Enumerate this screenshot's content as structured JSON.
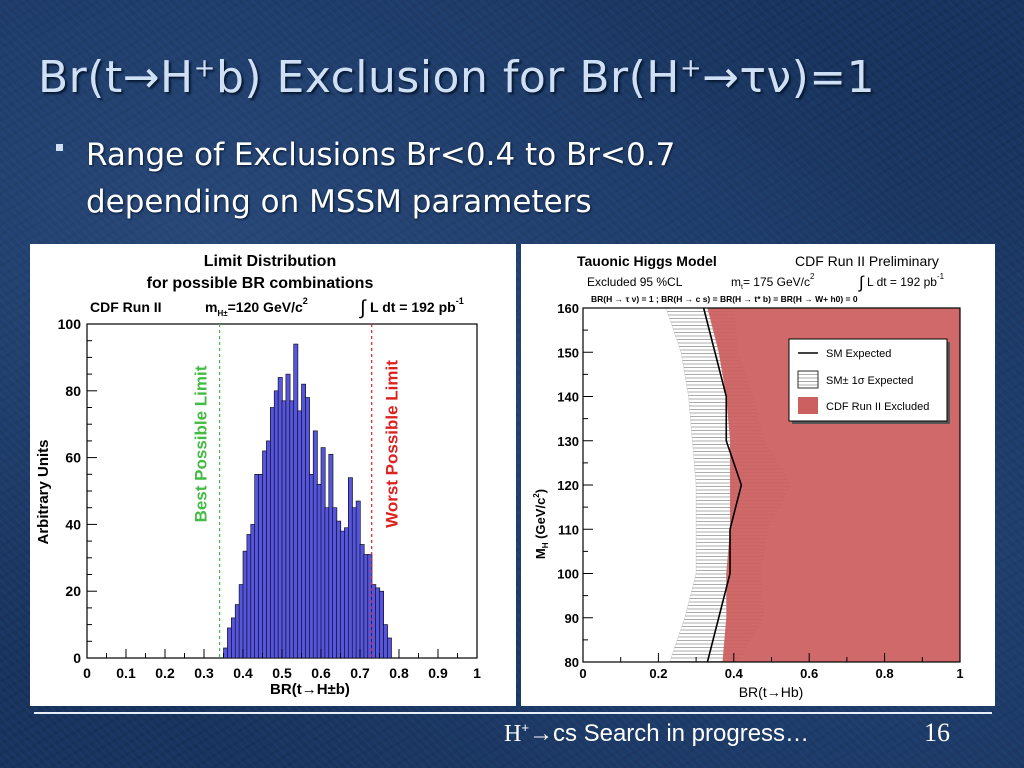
{
  "slide": {
    "title_parts": [
      "Br(t→H",
      "+",
      "b) Exclusion for Br(H",
      "+",
      "→τν)=1"
    ],
    "bullet": "Range of Exclusions Br<0.4 to Br<0.7 depending on MSSM parameters",
    "footer_parts": [
      "H",
      "+",
      "→cs Search in progress…"
    ],
    "page_number": "16"
  },
  "colors": {
    "background": "#17335e",
    "histogram_fill": "#5555dd",
    "best_limit": "#44bb44",
    "worst_limit": "#dd2222",
    "excluded": "#cc5f5f",
    "sm_band": "#999999"
  },
  "chart_data": [
    {
      "type": "bar",
      "title_lines": [
        "Limit Distribution",
        "for possible BR combinations"
      ],
      "subtitle_left": "CDF Run II",
      "subtitle_mass": "m",
      "subtitle_mass_sub": "H±",
      "subtitle_mass_value": "=120 GeV/c",
      "subtitle_mass_exp": "2",
      "subtitle_lumi": "L dt = 192 pb",
      "subtitle_lumi_exp": "-1",
      "xlabel": "BR(t→H±b)",
      "ylabel": "Arbitrary Units",
      "xlim": [
        0,
        1
      ],
      "ylim": [
        0,
        100
      ],
      "xticks": [
        0,
        0.1,
        0.2,
        0.3,
        0.4,
        0.5,
        0.6,
        0.7,
        0.8,
        0.9,
        1
      ],
      "yticks": [
        0,
        20,
        40,
        60,
        80,
        100
      ],
      "bin_width": 0.01,
      "bin_start": 0.34,
      "values": [
        0,
        3,
        9,
        12,
        16,
        22,
        32,
        37,
        40,
        55,
        55,
        62,
        65,
        75,
        80,
        84,
        77,
        85,
        77,
        94,
        74,
        82,
        78,
        55,
        68,
        52,
        63,
        45,
        61,
        45,
        41,
        38,
        39,
        54,
        45,
        47,
        34,
        31,
        31,
        22,
        21,
        20,
        10,
        6
      ],
      "best_limit": 0.34,
      "worst_limit": 0.73,
      "best_limit_label": "Best Possible Limit",
      "worst_limit_label": "Worst Possible Limit"
    },
    {
      "type": "area",
      "title": "Tauonic Higgs Model",
      "title_right": "CDF Run II Preliminary",
      "line2_excluded": "Excluded 95 %CL",
      "line2_mt": "m",
      "line2_mt_sub": "t",
      "line2_mt_value": "= 175 GeV/c",
      "line2_mt_exp": "2",
      "line2_lumi": "L  dt = 192 pb",
      "line2_lumi_exp": "-1",
      "line3": "BR(H → τ ν) = 1 ;   BR(H → c s) = BR(H → t* b) = BR(H → W+ h0) = 0",
      "xlabel": "BR(t→Hb)",
      "ylabel": "M",
      "ylabel_sub": "H",
      "ylabel_unit": " (GeV/c",
      "ylabel_exp": "2",
      "ylabel_close": ")",
      "xlim": [
        0,
        1
      ],
      "ylim": [
        80,
        160
      ],
      "xticks": [
        0,
        0.2,
        0.4,
        0.6,
        0.8,
        1
      ],
      "yticks": [
        80,
        90,
        100,
        110,
        120,
        130,
        140,
        150,
        160
      ],
      "mass": [
        80,
        90,
        100,
        110,
        120,
        130,
        140,
        150,
        160
      ],
      "sm_expected": [
        0.33,
        0.36,
        0.39,
        0.39,
        0.42,
        0.38,
        0.38,
        0.35,
        0.32
      ],
      "sm_band_low": [
        0.23,
        0.27,
        0.3,
        0.3,
        0.3,
        0.29,
        0.28,
        0.26,
        0.22
      ],
      "sm_band_high": [
        0.41,
        0.48,
        0.47,
        0.49,
        0.55,
        0.48,
        0.45,
        0.41,
        0.4
      ],
      "excluded_lower_edge": [
        0.37,
        0.38,
        0.38,
        0.39,
        0.39,
        0.39,
        0.38,
        0.36,
        0.33
      ],
      "legend": [
        "SM Expected",
        "SM± 1σ Expected",
        "CDF Run II Excluded"
      ],
      "legend_position": "top-right"
    }
  ]
}
